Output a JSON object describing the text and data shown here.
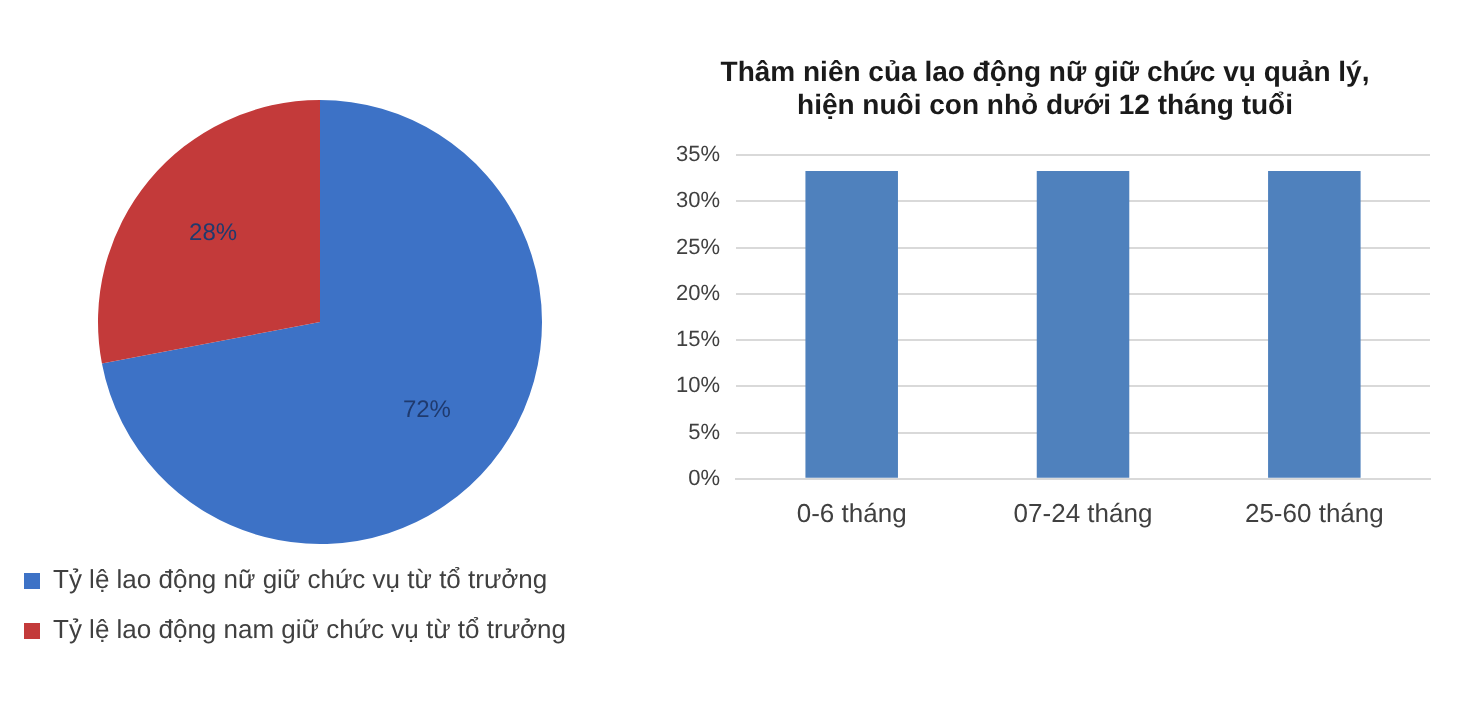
{
  "chart_data": [
    {
      "type": "pie",
      "categories": [
        "Tỷ lệ lao động nữ giữ chức vụ từ tổ trưởng",
        "Tỷ lệ lao động nam giữ chức vụ từ tổ trưởng"
      ],
      "values": [
        72,
        28
      ],
      "colors": [
        "#3d72c6",
        "#c33a3a"
      ],
      "value_labels": [
        "72%",
        "28%"
      ],
      "legend": "bottom"
    },
    {
      "type": "bar",
      "title": "Thâm niên của lao động nữ giữ chức vụ quản lý,\nhiện nuôi con nhỏ dưới 12 tháng tuổi",
      "categories": [
        "0-6 tháng",
        "07-24 tháng",
        "25-60 tháng"
      ],
      "values": [
        33.3,
        33.3,
        33.3
      ],
      "color": "#4f81bd",
      "ylim": [
        0,
        35
      ],
      "yticks": [
        {
          "value": 0,
          "label": "0%"
        },
        {
          "value": 5,
          "label": "5%"
        },
        {
          "value": 10,
          "label": "10%"
        },
        {
          "value": 15,
          "label": "15%"
        },
        {
          "value": 20,
          "label": "20%"
        },
        {
          "value": 25,
          "label": "25%"
        },
        {
          "value": 30,
          "label": "30%"
        },
        {
          "value": 35,
          "label": "35%"
        }
      ],
      "grid": "y"
    }
  ]
}
